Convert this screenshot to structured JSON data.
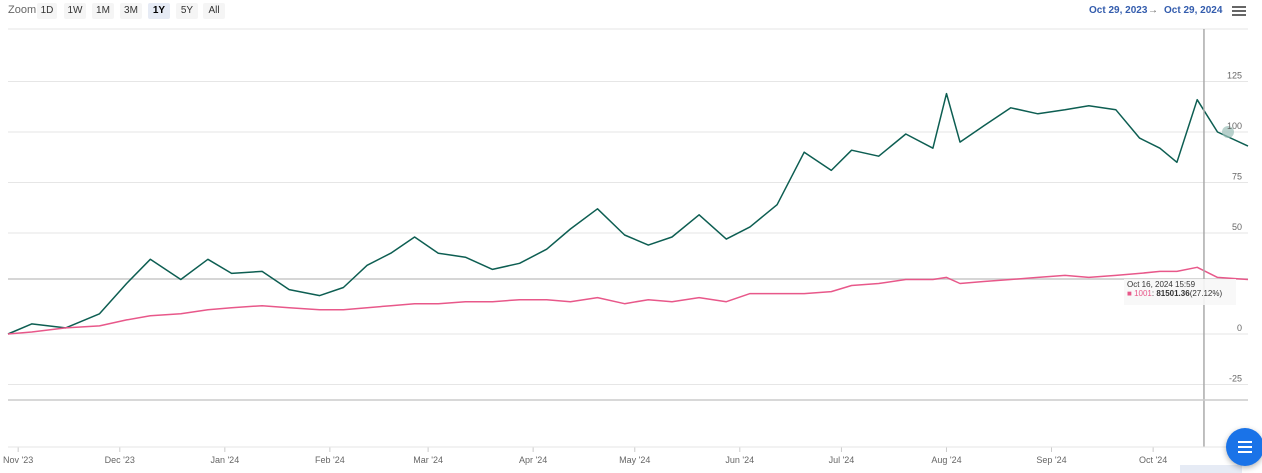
{
  "toolbar": {
    "zoom_label": "Zoom",
    "buttons": [
      "1D",
      "1W",
      "1M",
      "3M",
      "1Y",
      "5Y",
      "All"
    ],
    "active": "1Y",
    "range_from": "Oct 29, 2023",
    "range_sep": "→",
    "range_to": "Oct 29, 2024"
  },
  "tooltip": {
    "date": "Oct 16, 2024 15:59",
    "series": "1001",
    "value": "81501.36",
    "change": "(27.12%)"
  },
  "colors": {
    "green": "#0d5e52",
    "pink": "#e8588a",
    "grid": "#e6e6e6",
    "axis_text": "#666666"
  },
  "chart_data": {
    "type": "line",
    "ylim": [
      -25,
      125
    ],
    "yticks": [
      125,
      100,
      75,
      50,
      0,
      -25
    ],
    "xticks": [
      "Nov '23",
      "Dec '23",
      "Jan '24",
      "Feb '24",
      "Mar '24",
      "Apr '24",
      "May '24",
      "Jun '24",
      "Jul '24",
      "Aug '24",
      "Sep '24",
      "Oct '24"
    ],
    "series": [
      {
        "color": "#0d5e52",
        "x": [
          "2023-10-29",
          "2023-11-05",
          "2023-11-15",
          "2023-11-25",
          "2023-12-03",
          "2023-12-10",
          "2023-12-19",
          "2023-12-27",
          "2024-01-03",
          "2024-01-12",
          "2024-01-20",
          "2024-01-29",
          "2024-02-05",
          "2024-02-12",
          "2024-02-19",
          "2024-02-26",
          "2024-03-04",
          "2024-03-12",
          "2024-03-20",
          "2024-03-28",
          "2024-04-05",
          "2024-04-12",
          "2024-04-20",
          "2024-04-28",
          "2024-05-05",
          "2024-05-12",
          "2024-05-20",
          "2024-05-28",
          "2024-06-04",
          "2024-06-12",
          "2024-06-20",
          "2024-06-28",
          "2024-07-04",
          "2024-07-12",
          "2024-07-20",
          "2024-07-28",
          "2024-08-01",
          "2024-08-05",
          "2024-08-12",
          "2024-08-20",
          "2024-08-28",
          "2024-09-05",
          "2024-09-12",
          "2024-09-20",
          "2024-09-27",
          "2024-10-03",
          "2024-10-08",
          "2024-10-14",
          "2024-10-20",
          "2024-10-29"
        ],
        "values": [
          0,
          5,
          3,
          10,
          25,
          37,
          27,
          37,
          30,
          31,
          22,
          19,
          23,
          34,
          40,
          48,
          40,
          38,
          32,
          35,
          42,
          52,
          62,
          49,
          44,
          48,
          59,
          47,
          53,
          64,
          90,
          81,
          91,
          88,
          99,
          92,
          119,
          95,
          103,
          112,
          109,
          111,
          113,
          111,
          97,
          92,
          85,
          116,
          100,
          93
        ]
      },
      {
        "name": "1001",
        "color": "#e8588a",
        "x": [
          "2023-10-29",
          "2023-11-05",
          "2023-11-15",
          "2023-11-25",
          "2023-12-03",
          "2023-12-10",
          "2023-12-19",
          "2023-12-27",
          "2024-01-03",
          "2024-01-12",
          "2024-01-20",
          "2024-01-29",
          "2024-02-05",
          "2024-02-12",
          "2024-02-19",
          "2024-02-26",
          "2024-03-04",
          "2024-03-12",
          "2024-03-20",
          "2024-03-28",
          "2024-04-05",
          "2024-04-12",
          "2024-04-20",
          "2024-04-28",
          "2024-05-05",
          "2024-05-12",
          "2024-05-20",
          "2024-05-28",
          "2024-06-04",
          "2024-06-12",
          "2024-06-20",
          "2024-06-28",
          "2024-07-04",
          "2024-07-12",
          "2024-07-20",
          "2024-07-28",
          "2024-08-01",
          "2024-08-05",
          "2024-08-12",
          "2024-08-20",
          "2024-08-28",
          "2024-09-05",
          "2024-09-12",
          "2024-09-20",
          "2024-09-27",
          "2024-10-03",
          "2024-10-08",
          "2024-10-14",
          "2024-10-20",
          "2024-10-29"
        ],
        "values": [
          0,
          1,
          3,
          4,
          7,
          9,
          10,
          12,
          13,
          14,
          13,
          12,
          12,
          13,
          14,
          15,
          15,
          16,
          16,
          17,
          17,
          16,
          18,
          15,
          17,
          16,
          18,
          16,
          20,
          20,
          20,
          21,
          24,
          25,
          27,
          27,
          28,
          25,
          26,
          27,
          28,
          29,
          28,
          29,
          30,
          31,
          31,
          33,
          28,
          27
        ]
      }
    ]
  }
}
